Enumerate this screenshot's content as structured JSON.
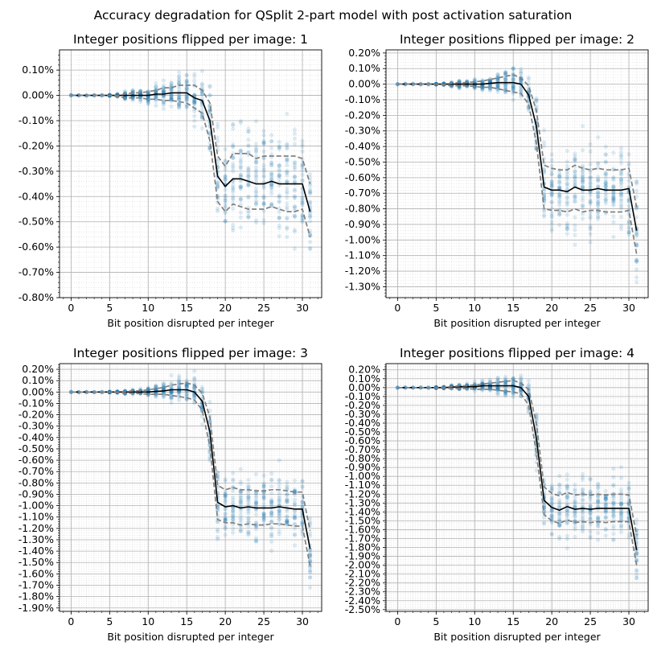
{
  "figure": {
    "title": "Accuracy degradation for QSplit 2-part model with post activation saturation"
  },
  "colors": {
    "scatter": "#1f77b4",
    "mean_line": "#000000",
    "band_line": "#808080",
    "grid_major": "#b0b0b0",
    "grid_minor": "#d9d9d9"
  },
  "chart_data": [
    {
      "type": "line",
      "title": "Integer positions flipped per image: 1",
      "xlabel": "Bit position disrupted per integer",
      "ylabel": "",
      "xlim": [
        -1.5,
        32.5
      ],
      "ylim": [
        -0.8,
        0.18
      ],
      "yticks": [
        0.1,
        0.0,
        -0.1,
        -0.2,
        -0.3,
        -0.4,
        -0.5,
        -0.6,
        -0.7,
        -0.8
      ],
      "xticks": [
        0,
        5,
        10,
        15,
        20,
        25,
        30
      ],
      "grid": true,
      "x": [
        0,
        1,
        2,
        3,
        4,
        5,
        6,
        7,
        8,
        9,
        10,
        11,
        12,
        13,
        14,
        15,
        16,
        17,
        18,
        19,
        20,
        21,
        22,
        23,
        24,
        25,
        26,
        27,
        28,
        29,
        30,
        31
      ],
      "series": [
        {
          "role": "mean",
          "values": [
            0.0,
            0.0,
            0.0,
            0.0,
            0.0,
            0.0,
            0.0,
            0.0,
            0.0,
            0.0,
            0.0,
            0.005,
            0.005,
            0.01,
            0.01,
            0.01,
            -0.01,
            -0.02,
            -0.1,
            -0.32,
            -0.36,
            -0.33,
            -0.33,
            -0.34,
            -0.35,
            -0.35,
            -0.34,
            -0.35,
            -0.35,
            -0.35,
            -0.35,
            -0.46
          ]
        },
        {
          "role": "upper",
          "values": [
            0.0,
            0.0,
            0.0,
            0.0,
            0.0,
            0.0,
            0.0,
            0.005,
            0.01,
            0.01,
            0.015,
            0.02,
            0.03,
            0.03,
            0.04,
            0.04,
            0.04,
            0.02,
            -0.03,
            -0.24,
            -0.28,
            -0.23,
            -0.23,
            -0.23,
            -0.25,
            -0.24,
            -0.24,
            -0.24,
            -0.24,
            -0.24,
            -0.25,
            -0.35
          ]
        },
        {
          "role": "lower",
          "values": [
            0.0,
            0.0,
            0.0,
            0.0,
            0.0,
            0.0,
            -0.005,
            -0.01,
            -0.01,
            -0.01,
            -0.015,
            -0.015,
            -0.02,
            -0.02,
            -0.025,
            -0.03,
            -0.05,
            -0.07,
            -0.18,
            -0.42,
            -0.46,
            -0.43,
            -0.44,
            -0.45,
            -0.45,
            -0.45,
            -0.44,
            -0.45,
            -0.46,
            -0.46,
            -0.45,
            -0.56
          ]
        }
      ]
    },
    {
      "type": "line",
      "title": "Integer positions flipped per image: 2",
      "xlabel": "Bit position disrupted per integer",
      "ylabel": "",
      "xlim": [
        -1.5,
        32.5
      ],
      "ylim": [
        -1.37,
        0.22
      ],
      "yticks": [
        0.2,
        0.1,
        0.0,
        -0.1,
        -0.2,
        -0.3,
        -0.4,
        -0.5,
        -0.6,
        -0.7,
        -0.8,
        -0.9,
        -1.0,
        -1.1,
        -1.2,
        -1.3
      ],
      "xticks": [
        0,
        5,
        10,
        15,
        20,
        25,
        30
      ],
      "grid": true,
      "x": [
        0,
        1,
        2,
        3,
        4,
        5,
        6,
        7,
        8,
        9,
        10,
        11,
        12,
        13,
        14,
        15,
        16,
        17,
        18,
        19,
        20,
        21,
        22,
        23,
        24,
        25,
        26,
        27,
        28,
        29,
        30,
        31
      ],
      "series": [
        {
          "role": "mean",
          "values": [
            0.0,
            0.0,
            0.0,
            0.0,
            0.0,
            0.0,
            0.0,
            0.0,
            0.0,
            0.0,
            0.0,
            0.0,
            0.005,
            0.01,
            0.01,
            0.01,
            0.0,
            -0.07,
            -0.27,
            -0.66,
            -0.68,
            -0.68,
            -0.69,
            -0.66,
            -0.68,
            -0.68,
            -0.67,
            -0.68,
            -0.68,
            -0.68,
            -0.67,
            -0.94
          ]
        },
        {
          "role": "upper",
          "values": [
            0.0,
            0.0,
            0.0,
            0.0,
            0.0,
            0.0,
            0.0,
            0.005,
            0.01,
            0.01,
            0.015,
            0.02,
            0.03,
            0.04,
            0.05,
            0.06,
            0.04,
            -0.01,
            -0.17,
            -0.52,
            -0.54,
            -0.55,
            -0.55,
            -0.52,
            -0.54,
            -0.55,
            -0.54,
            -0.55,
            -0.55,
            -0.55,
            -0.54,
            -0.79
          ]
        },
        {
          "role": "lower",
          "values": [
            0.0,
            0.0,
            0.0,
            0.0,
            0.0,
            0.0,
            -0.005,
            -0.01,
            -0.01,
            -0.01,
            -0.015,
            -0.02,
            -0.02,
            -0.03,
            -0.04,
            -0.05,
            -0.06,
            -0.13,
            -0.38,
            -0.8,
            -0.81,
            -0.81,
            -0.82,
            -0.8,
            -0.82,
            -0.81,
            -0.81,
            -0.82,
            -0.82,
            -0.82,
            -0.81,
            -1.09
          ]
        }
      ]
    },
    {
      "type": "line",
      "title": "Integer positions flipped per image: 3",
      "xlabel": "Bit position disrupted per integer",
      "ylabel": "",
      "xlim": [
        -1.5,
        32.5
      ],
      "ylim": [
        -1.93,
        0.25
      ],
      "yticks": [
        0.2,
        0.1,
        0.0,
        -0.1,
        -0.2,
        -0.3,
        -0.4,
        -0.5,
        -0.6,
        -0.7,
        -0.8,
        -0.9,
        -1.0,
        -1.1,
        -1.2,
        -1.3,
        -1.4,
        -1.5,
        -1.6,
        -1.7,
        -1.8,
        -1.9
      ],
      "xticks": [
        0,
        5,
        10,
        15,
        20,
        25,
        30
      ],
      "grid": true,
      "x": [
        0,
        1,
        2,
        3,
        4,
        5,
        6,
        7,
        8,
        9,
        10,
        11,
        12,
        13,
        14,
        15,
        16,
        17,
        18,
        19,
        20,
        21,
        22,
        23,
        24,
        25,
        26,
        27,
        28,
        29,
        30,
        31
      ],
      "series": [
        {
          "role": "mean",
          "values": [
            0.0,
            0.0,
            0.0,
            0.0,
            0.0,
            0.0,
            0.0,
            0.0,
            0.0,
            0.0,
            0.0,
            0.005,
            0.01,
            0.02,
            0.02,
            0.02,
            0.0,
            -0.08,
            -0.35,
            -0.97,
            -1.01,
            -1.0,
            -1.02,
            -1.01,
            -1.02,
            -1.02,
            -1.02,
            -1.01,
            -1.02,
            -1.03,
            -1.03,
            -1.38
          ]
        },
        {
          "role": "upper",
          "values": [
            0.0,
            0.0,
            0.0,
            0.0,
            0.0,
            0.0,
            0.0,
            0.005,
            0.01,
            0.01,
            0.02,
            0.03,
            0.04,
            0.06,
            0.07,
            0.08,
            0.06,
            -0.01,
            -0.22,
            -0.82,
            -0.86,
            -0.84,
            -0.86,
            -0.86,
            -0.87,
            -0.87,
            -0.86,
            -0.86,
            -0.87,
            -0.88,
            -0.88,
            -1.22
          ]
        },
        {
          "role": "lower",
          "values": [
            0.0,
            0.0,
            0.0,
            0.0,
            0.0,
            0.0,
            -0.005,
            -0.01,
            -0.01,
            -0.015,
            -0.02,
            -0.02,
            -0.02,
            -0.03,
            -0.04,
            -0.05,
            -0.07,
            -0.16,
            -0.48,
            -1.12,
            -1.15,
            -1.15,
            -1.17,
            -1.16,
            -1.17,
            -1.17,
            -1.16,
            -1.16,
            -1.17,
            -1.18,
            -1.18,
            -1.53
          ]
        }
      ]
    },
    {
      "type": "line",
      "title": "Integer positions flipped per image: 4",
      "xlabel": "Bit position disrupted per integer",
      "ylabel": "",
      "xlim": [
        -1.5,
        32.5
      ],
      "ylim": [
        -2.52,
        0.27
      ],
      "yticks": [
        0.2,
        0.1,
        0.0,
        -0.1,
        -0.2,
        -0.3,
        -0.4,
        -0.5,
        -0.6,
        -0.7,
        -0.8,
        -0.9,
        -1.0,
        -1.1,
        -1.2,
        -1.3,
        -1.4,
        -1.5,
        -1.6,
        -1.7,
        -1.8,
        -1.9,
        -2.0,
        -2.1,
        -2.2,
        -2.3,
        -2.4,
        -2.5
      ],
      "xticks": [
        0,
        5,
        10,
        15,
        20,
        25,
        30
      ],
      "grid": true,
      "x": [
        0,
        1,
        2,
        3,
        4,
        5,
        6,
        7,
        8,
        9,
        10,
        11,
        12,
        13,
        14,
        15,
        16,
        17,
        18,
        19,
        20,
        21,
        22,
        23,
        24,
        25,
        26,
        27,
        28,
        29,
        30,
        31
      ],
      "series": [
        {
          "role": "mean",
          "values": [
            0.0,
            0.0,
            0.0,
            0.0,
            0.0,
            0.0,
            0.0,
            0.005,
            0.01,
            0.01,
            0.01,
            0.02,
            0.02,
            0.02,
            0.02,
            0.02,
            0.0,
            -0.1,
            -0.57,
            -1.27,
            -1.35,
            -1.38,
            -1.34,
            -1.37,
            -1.36,
            -1.37,
            -1.36,
            -1.36,
            -1.36,
            -1.36,
            -1.36,
            -1.83
          ]
        },
        {
          "role": "upper",
          "values": [
            0.0,
            0.0,
            0.0,
            0.0,
            0.0,
            0.0,
            0.005,
            0.01,
            0.02,
            0.02,
            0.03,
            0.04,
            0.05,
            0.06,
            0.07,
            0.08,
            0.05,
            -0.02,
            -0.4,
            -1.12,
            -1.19,
            -1.22,
            -1.18,
            -1.21,
            -1.2,
            -1.21,
            -1.2,
            -1.21,
            -1.2,
            -1.2,
            -1.21,
            -1.66
          ]
        },
        {
          "role": "lower",
          "values": [
            0.0,
            0.0,
            0.0,
            0.0,
            0.0,
            -0.005,
            -0.005,
            -0.01,
            -0.01,
            -0.01,
            -0.02,
            -0.02,
            -0.02,
            -0.03,
            -0.04,
            -0.05,
            -0.07,
            -0.2,
            -0.74,
            -1.43,
            -1.5,
            -1.53,
            -1.49,
            -1.52,
            -1.51,
            -1.52,
            -1.51,
            -1.52,
            -1.51,
            -1.51,
            -1.51,
            -2.0
          ]
        }
      ]
    }
  ]
}
